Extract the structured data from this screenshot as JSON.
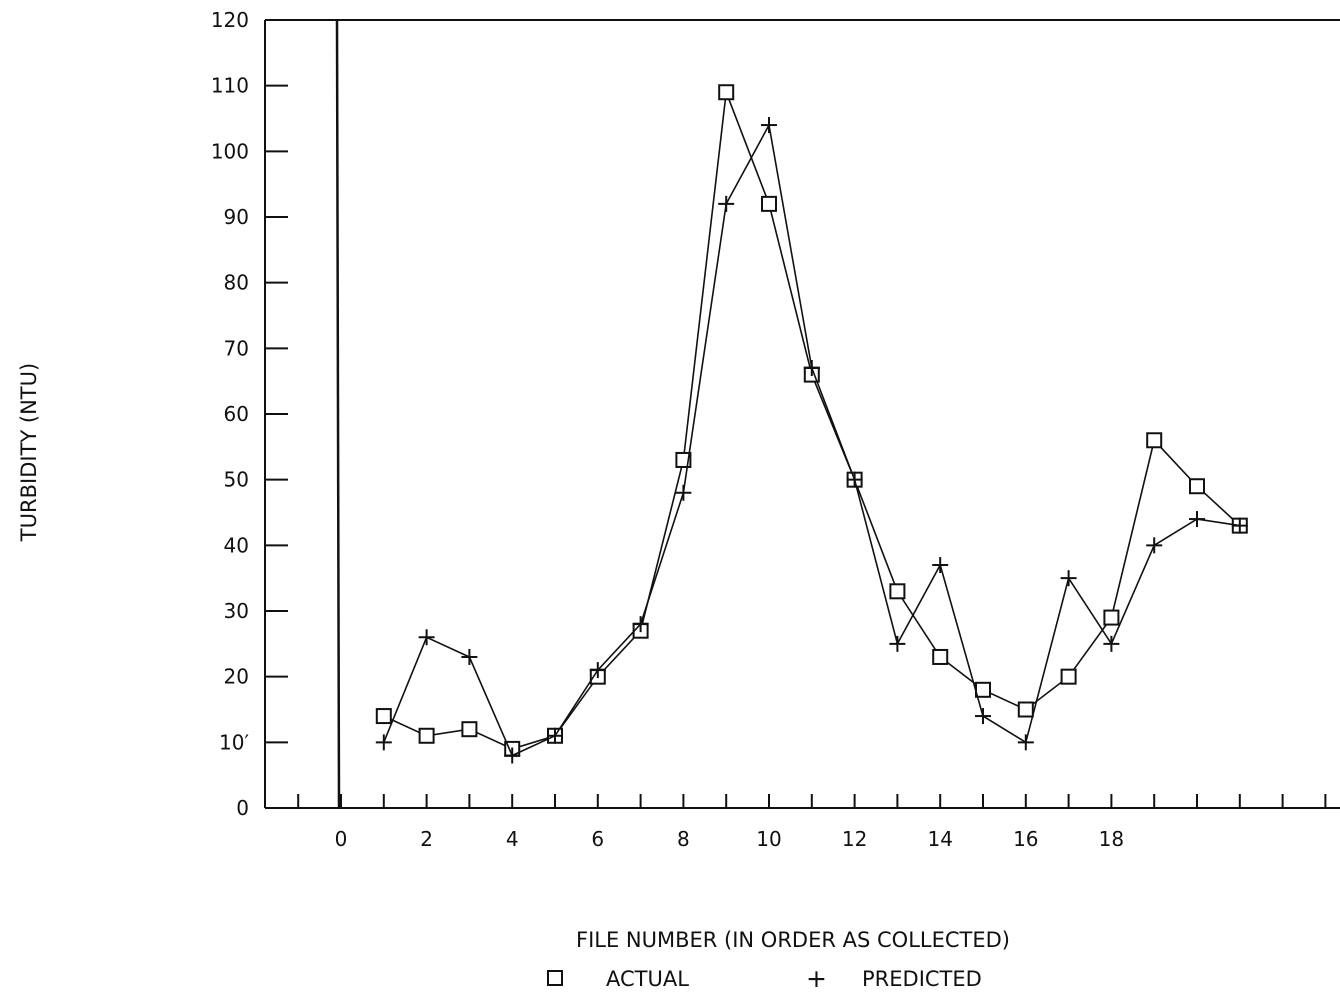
{
  "chart_data": {
    "type": "line",
    "title": "",
    "xlabel": "FILE NUMBER (IN ORDER AS COLLECTED)",
    "ylabel": "TURBIDITY (NTU)",
    "xlim": [
      -1,
      23
    ],
    "ylim": [
      0,
      120
    ],
    "xticks": [
      0,
      2,
      4,
      6,
      8,
      10,
      12,
      14,
      16,
      18
    ],
    "xtick_labels": [
      "0",
      "2",
      "4",
      "6",
      "8",
      "10",
      "12",
      "14",
      "16",
      "18"
    ],
    "xtick_marks": [
      -1,
      0,
      1,
      2,
      3,
      4,
      5,
      6,
      7,
      8,
      9,
      10,
      11,
      12,
      13,
      14,
      15,
      16,
      17,
      18,
      19,
      20,
      21,
      22,
      23
    ],
    "yticks": [
      0,
      10,
      20,
      30,
      40,
      50,
      60,
      70,
      80,
      90,
      100,
      110,
      120
    ],
    "ytick_labels": [
      "0",
      "10′",
      "20",
      "30",
      "40",
      "50",
      "60",
      "70",
      "80",
      "90",
      "100",
      "110",
      "120"
    ],
    "grid": false,
    "legend_position": "bottom-center",
    "x": [
      1,
      2,
      3,
      4,
      5,
      6,
      7,
      8,
      9,
      10,
      11,
      12,
      13,
      14,
      15,
      16,
      17,
      18,
      19,
      20,
      21
    ],
    "series": [
      {
        "name": "ACTUAL",
        "marker": "square",
        "marker_symbol": "□",
        "color": "#111111",
        "values": [
          14,
          11,
          12,
          9,
          11,
          20,
          27,
          53,
          109,
          92,
          66,
          50,
          33,
          23,
          18,
          15,
          20,
          29,
          56,
          49,
          43
        ]
      },
      {
        "name": "PREDICTED",
        "marker": "plus",
        "marker_symbol": "+",
        "color": "#111111",
        "values": [
          10,
          26,
          23,
          8,
          11,
          21,
          28,
          48,
          92,
          104,
          67,
          50,
          25,
          37,
          14,
          10,
          35,
          25,
          40,
          44,
          43
        ]
      }
    ]
  }
}
